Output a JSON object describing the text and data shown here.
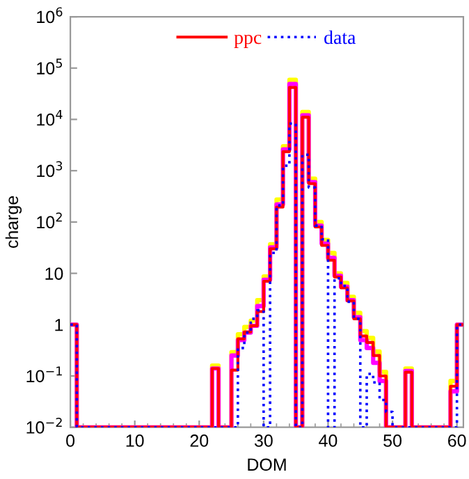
{
  "chart_data": {
    "type": "histogram",
    "xlabel": "DOM",
    "ylabel": "charge",
    "log": "y",
    "grid": false,
    "legend": "top",
    "bins": [
      0,
      1,
      2,
      3,
      4,
      5,
      6,
      7,
      8,
      9,
      10,
      11,
      12,
      13,
      14,
      15,
      16,
      17,
      18,
      19,
      20,
      21,
      22,
      23,
      24,
      25,
      26,
      27,
      28,
      29,
      30,
      31,
      32,
      33,
      34,
      35,
      36,
      37,
      38,
      39,
      40,
      41,
      42,
      43,
      44,
      45,
      46,
      47,
      48,
      49,
      50,
      51,
      52,
      53,
      54,
      55,
      56,
      57,
      58,
      59,
      60,
      61
    ],
    "xlim": [
      0,
      61
    ],
    "xticks": [
      0,
      10,
      20,
      30,
      40,
      50,
      60
    ],
    "ylim": [
      0.01,
      1000000
    ],
    "yticks": [
      {
        "value": 0.01,
        "label": "10$^{−2}$"
      },
      {
        "value": 0.1,
        "label": "10$^{−1}$"
      },
      1,
      10,
      {
        "value": 100,
        "label": "10$^{2}$"
      },
      {
        "value": 1000,
        "label": "10$^{3}$"
      },
      {
        "value": 10000,
        "label": "10$^{4}$"
      },
      {
        "value": 100000,
        "label": "10$^{5}$"
      },
      {
        "value": 1000000,
        "label": "10$^{6}$"
      }
    ],
    "series": [
      {
        "color": "#ffff00",
        "line_style": "solid",
        "values": [
          1,
          null,
          null,
          null,
          null,
          null,
          null,
          null,
          null,
          null,
          null,
          null,
          null,
          null,
          null,
          null,
          null,
          null,
          null,
          null,
          null,
          null,
          0.16,
          null,
          null,
          0.29,
          0.65,
          0.9,
          1.2,
          3,
          8.7,
          37,
          275,
          3000,
          59000,
          null,
          14000,
          700,
          100,
          45,
          25,
          10,
          6.5,
          3.5,
          1.7,
          0.75,
          0.55,
          0.3,
          0.12,
          null,
          null,
          null,
          0.14,
          null,
          null,
          null,
          null,
          null,
          null,
          0.08,
          1
        ]
      },
      {
        "color": "#ff00ff",
        "line_style": "solid",
        "values": [
          1,
          null,
          null,
          null,
          null,
          null,
          null,
          null,
          null,
          null,
          null,
          null,
          null,
          null,
          null,
          null,
          null,
          null,
          null,
          null,
          null,
          null,
          0.14,
          null,
          null,
          0.25,
          0.5,
          0.7,
          0.95,
          2.3,
          7.5,
          32,
          220,
          2600,
          49000,
          null,
          12000,
          600,
          85,
          38,
          20,
          9,
          5.5,
          3,
          1.4,
          0.5,
          0.35,
          0.18,
          0.08,
          null,
          null,
          null,
          0.125,
          null,
          null,
          null,
          null,
          null,
          null,
          0.05,
          1
        ]
      },
      {
        "name": "ppc",
        "color": "#ff0000",
        "line_style": "solid",
        "values": [
          1,
          null,
          null,
          null,
          null,
          null,
          null,
          null,
          null,
          null,
          null,
          null,
          null,
          null,
          null,
          null,
          null,
          null,
          null,
          null,
          null,
          null,
          0.14,
          null,
          null,
          0.13,
          0.53,
          0.72,
          0.95,
          1.8,
          7,
          30,
          195,
          2350,
          42000,
          null,
          11000,
          560,
          80,
          35,
          18,
          8.5,
          5.2,
          2.9,
          1.3,
          0.6,
          0.45,
          0.25,
          0.1,
          null,
          null,
          null,
          0.118,
          null,
          null,
          null,
          null,
          null,
          null,
          0.063,
          1
        ]
      },
      {
        "name": "data",
        "color": "#0000ff",
        "line_style": "dotted",
        "values": [
          1,
          null,
          null,
          null,
          null,
          null,
          null,
          null,
          null,
          null,
          null,
          null,
          null,
          null,
          null,
          null,
          null,
          null,
          null,
          null,
          null,
          null,
          null,
          null,
          null,
          null,
          0.35,
          0.7,
          1.3,
          1.9,
          null,
          25,
          210,
          1250,
          8300,
          null,
          2050,
          470,
          85,
          46,
          null,
          8,
          5.7,
          2.8,
          1.3,
          null,
          0.11,
          0.075,
          0.034,
          0.02,
          null,
          null,
          null,
          null,
          null,
          null,
          null,
          null,
          null,
          null,
          1
        ]
      }
    ]
  }
}
